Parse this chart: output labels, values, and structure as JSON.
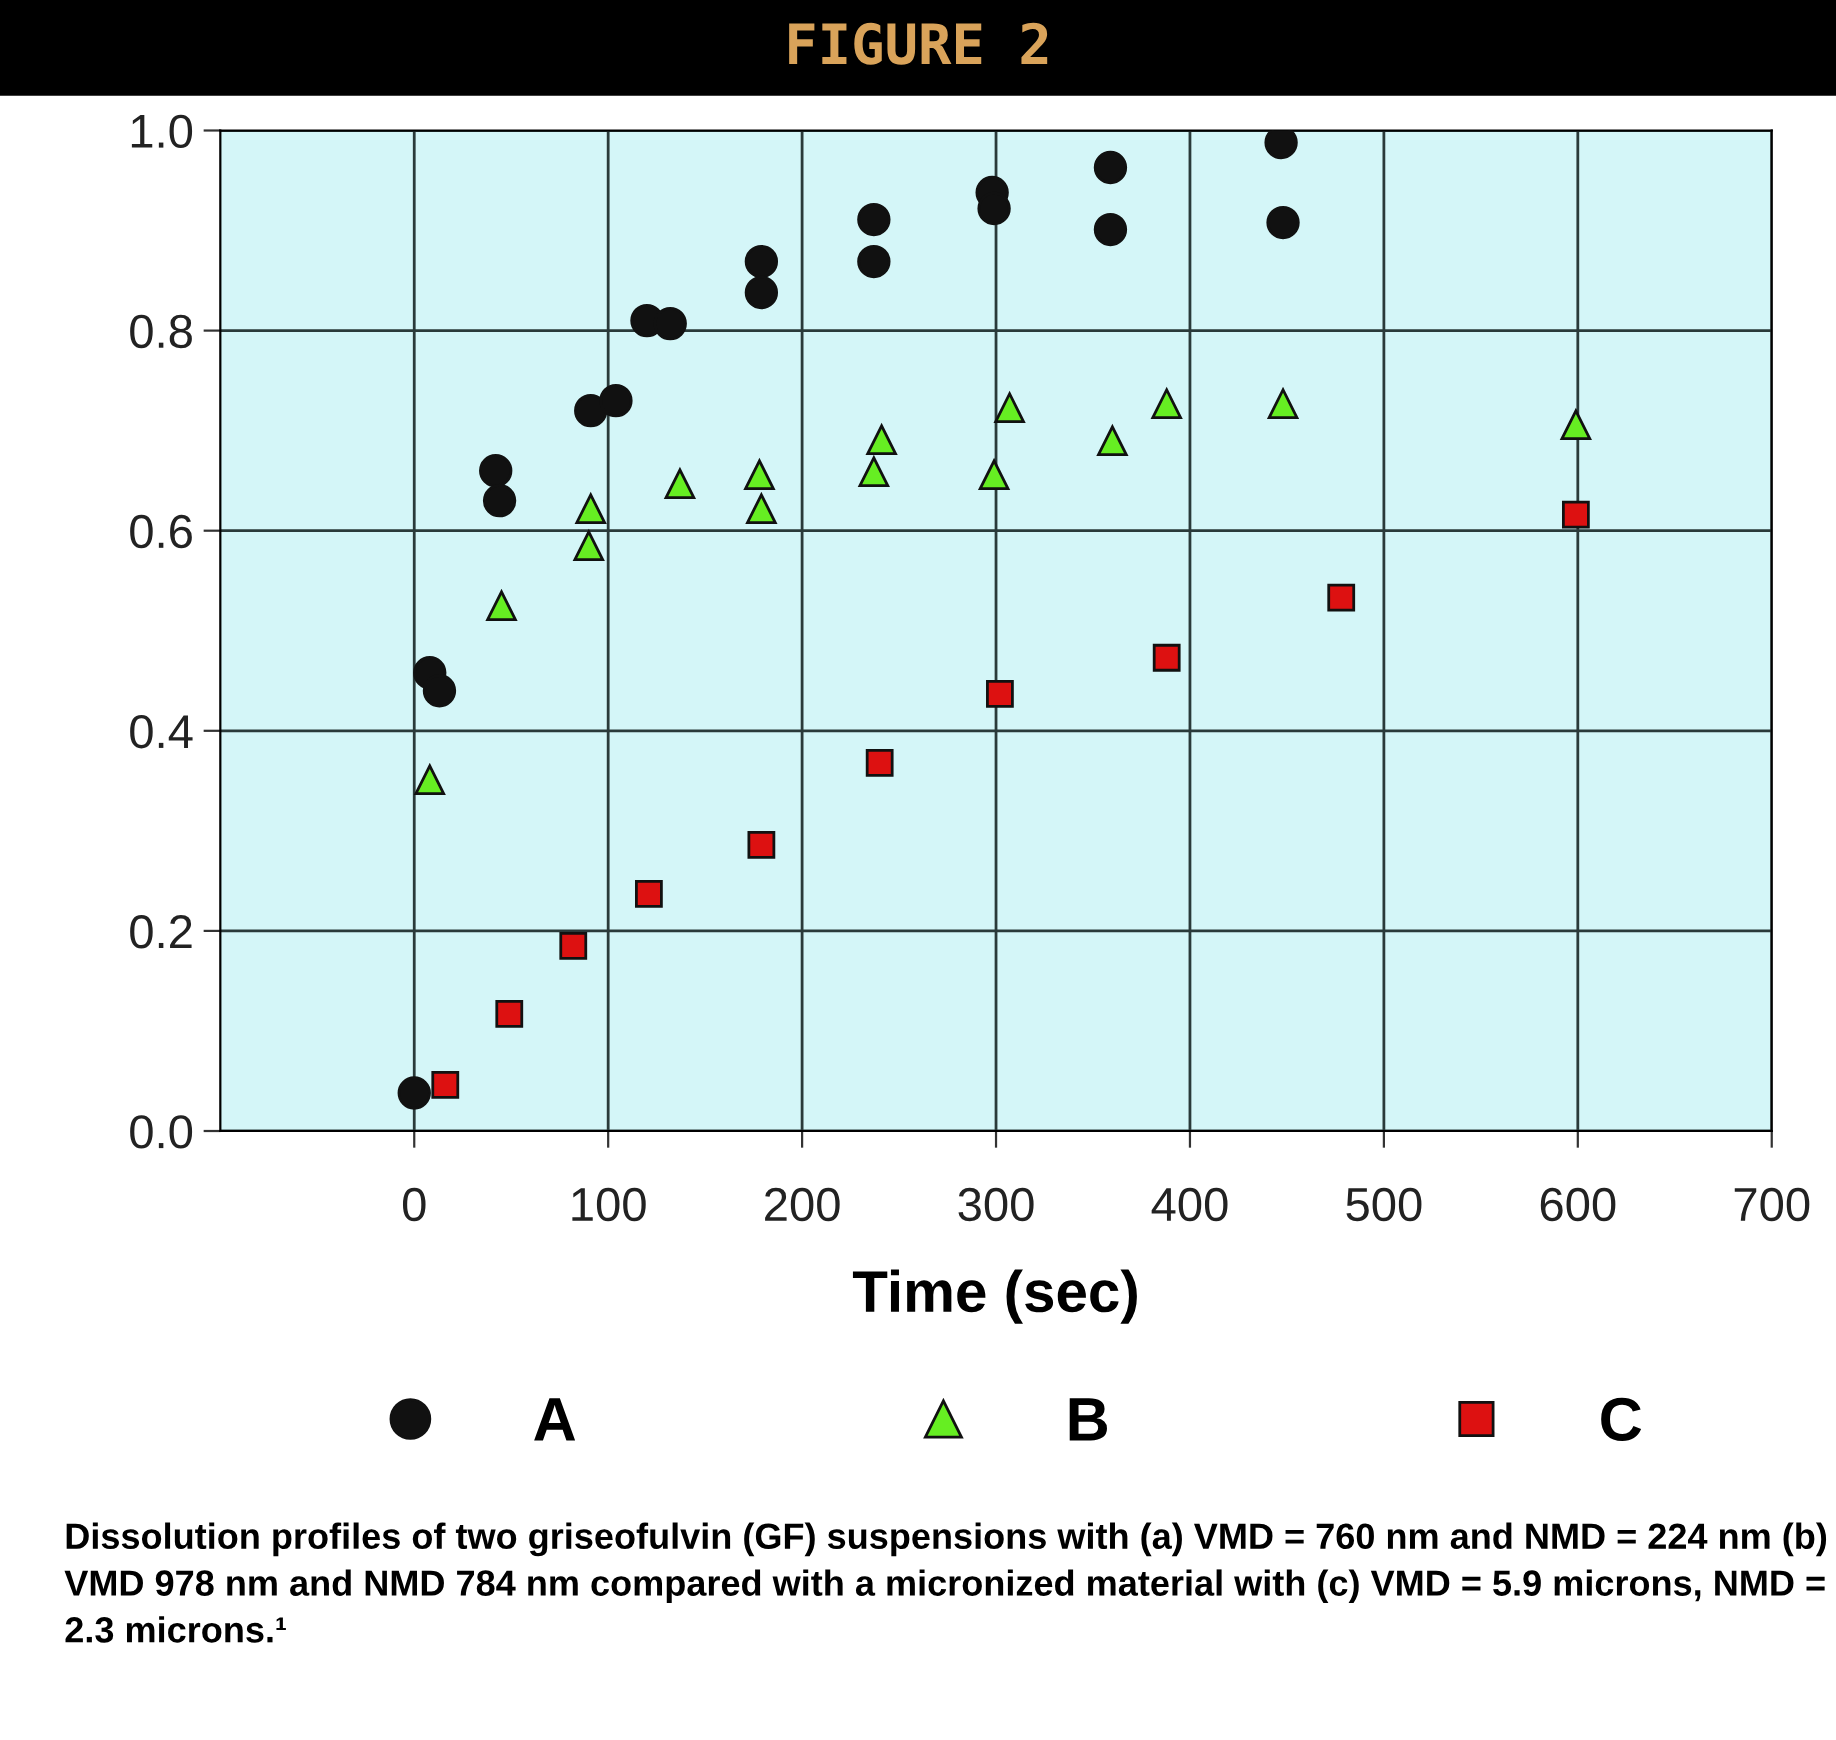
{
  "chart_data": {
    "type": "scatter",
    "title": "FIGURE 2",
    "xlabel": "Time (sec)",
    "xlim": [
      -100,
      700
    ],
    "xticks": [
      0,
      100,
      200,
      300,
      400,
      500,
      600,
      700
    ],
    "ylim": [
      0,
      1
    ],
    "yticks": [
      {
        "value": 0,
        "label": "0.0"
      },
      {
        "value": 0.2,
        "label": "0.2"
      },
      {
        "value": 0.4,
        "label": "0.4"
      },
      {
        "value": 0.6,
        "label": "0.6"
      },
      {
        "value": 0.8,
        "label": "0.8"
      },
      {
        "value": 1,
        "label": "1.0"
      }
    ],
    "grid": true,
    "legend": "bottom",
    "series": [
      {
        "name": "A",
        "color": "#111111",
        "marker": "circle",
        "x": [
          0,
          8,
          13,
          42,
          44,
          91,
          104,
          120,
          132,
          179,
          179,
          237,
          237,
          298,
          299,
          359,
          359,
          447,
          448
        ],
        "values": [
          0.038,
          0.458,
          0.44,
          0.66,
          0.63,
          0.72,
          0.73,
          0.81,
          0.807,
          0.869,
          0.838,
          0.911,
          0.869,
          0.938,
          0.922,
          0.963,
          0.901,
          0.988,
          0.908
        ]
      },
      {
        "name": "B",
        "color": "#66ee22",
        "marker": "triangle",
        "x": [
          8,
          45,
          90,
          91,
          137,
          178,
          179,
          237,
          241,
          299,
          307,
          360,
          388,
          448,
          599
        ],
        "values": [
          0.351,
          0.525,
          0.585,
          0.622,
          0.647,
          0.656,
          0.622,
          0.659,
          0.691,
          0.656,
          0.723,
          0.69,
          0.727,
          0.727,
          0.706
        ]
      },
      {
        "name": "C",
        "color": "#dd1111",
        "marker": "square",
        "x": [
          16,
          49,
          82,
          121,
          179,
          240,
          302,
          388,
          478,
          599
        ],
        "values": [
          0.046,
          0.117,
          0.185,
          0.237,
          0.286,
          0.368,
          0.437,
          0.473,
          0.533,
          0.616
        ]
      }
    ],
    "annotations": [
      "Dissolution profiles of two griseofulvin (GF) suspensions with (a) VMD = 760 nm and NMD = 224 nm (b) VMD 978 nm and NMD 784 nm compared with a micronized material with (c) VMD = 5.9 microns, NMD = 2.3 microns.¹"
    ]
  }
}
